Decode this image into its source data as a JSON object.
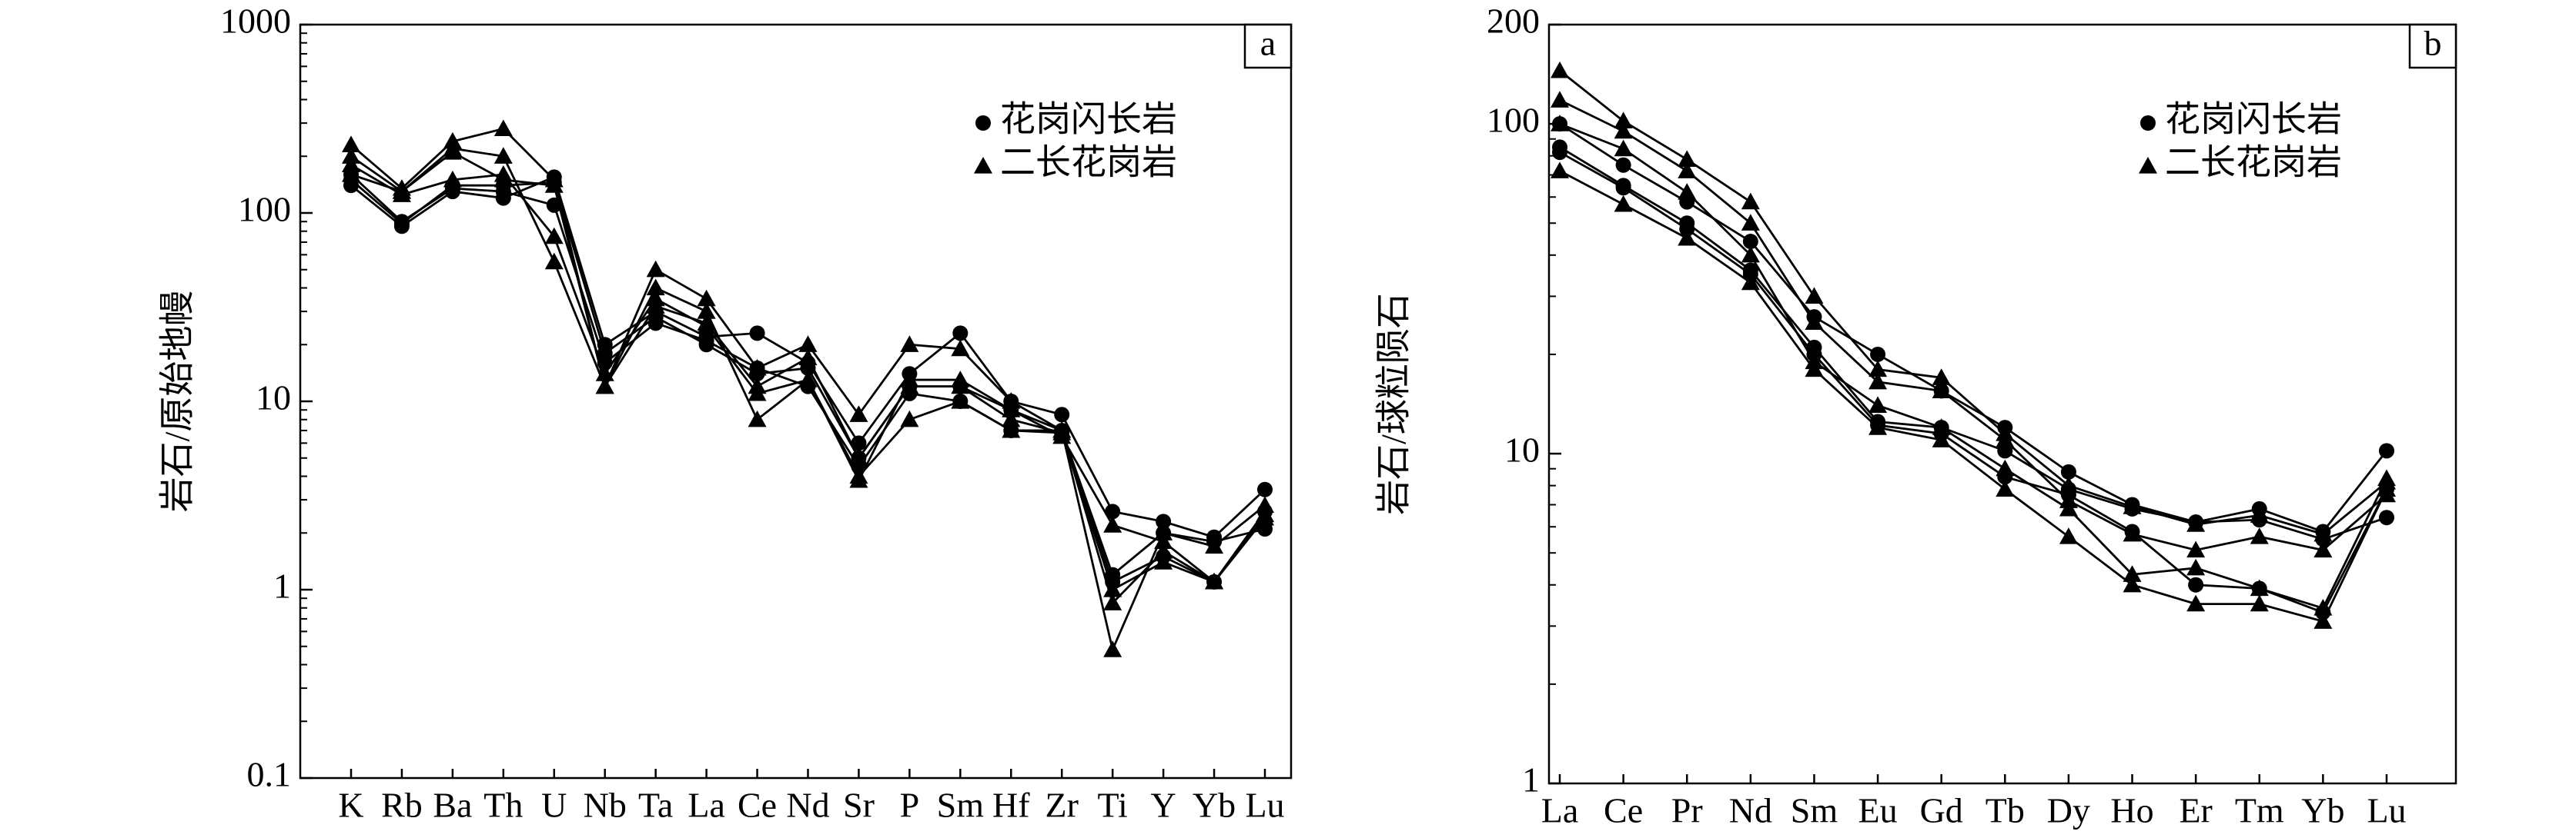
{
  "chart_data": [
    {
      "type": "line",
      "panel": "a",
      "ylabel": "岩石/原始地幔",
      "yscale": "log",
      "ylim": [
        0.1,
        1000
      ],
      "yticks": [
        0.1,
        1,
        10,
        100,
        1000
      ],
      "legend": "upper right",
      "categories": [
        "K",
        "Rb",
        "Ba",
        "Th",
        "U",
        "Nb",
        "Ta",
        "La",
        "Ce",
        "Nd",
        "Sr",
        "P",
        "Sm",
        "Hf",
        "Zr",
        "Ti",
        "Y",
        "Yb",
        "Lu"
      ],
      "series": [
        {
          "name": "花岗闪长岩",
          "marker": "circle",
          "color": "#000000",
          "samples": [
            [
              140,
              85,
              130,
              120,
              155,
              20,
              30,
              22,
              23,
              16,
              6,
              14,
              23,
              10,
              8.5,
              2.6,
              2.3,
              1.9,
              3.4
            ],
            [
              150,
              88,
              140,
              140,
              145,
              18,
              28,
              20,
              14,
              15,
              5,
              12,
              12,
              9,
              7,
              1.2,
              2.0,
              1.8,
              2.1
            ],
            [
              160,
              90,
              135,
              130,
              110,
              16,
              26,
              21,
              15,
              12,
              4.5,
              11,
              10,
              7,
              6.8,
              1.1,
              1.5,
              1.1,
              2.6
            ]
          ]
        },
        {
          "name": "二长花岗岩",
          "marker": "triangle",
          "color": "#000000",
          "samples": [
            [
              230,
              135,
              240,
              280,
              150,
              12,
              50,
              35,
              15,
              20,
              8.5,
              20,
              19,
              10,
              7,
              0.48,
              2.0,
              1.7,
              2.8
            ],
            [
              200,
              130,
              220,
              200,
              55,
              12,
              40,
              30,
              8,
              13,
              4,
              8,
              10,
              7,
              7,
              0.85,
              1.6,
              1.1,
              2.5
            ],
            [
              180,
              125,
              150,
              160,
              75,
              14,
              35,
              25,
              11,
              13,
              3.8,
              13,
              13,
              9,
              6.5,
              2.2,
              1.8,
              1.1,
              2.4
            ],
            [
              160,
              130,
              210,
              150,
              140,
              12,
              32,
              26,
              12,
              17,
              5,
              12,
              12,
              8,
              6.8,
              1.0,
              1.4,
              1.1,
              2.5
            ]
          ]
        }
      ]
    },
    {
      "type": "line",
      "panel": "b",
      "ylabel": "岩石/球粒陨石",
      "yscale": "log",
      "ylim": [
        1,
        200
      ],
      "yticks": [
        1,
        10,
        100,
        200
      ],
      "legend": "upper right",
      "categories": [
        "La",
        "Ce",
        "Pr",
        "Nd",
        "Sm",
        "Eu",
        "Gd",
        "Tb",
        "Dy",
        "Ho",
        "Er",
        "Tm",
        "Yb",
        "Lu"
      ],
      "series": [
        {
          "name": "花岗闪长岩",
          "marker": "circle",
          "color": "#000000",
          "samples": [
            [
              100,
              75,
              58,
              44,
              26,
              20,
              15.5,
              12,
              8.8,
              7.0,
              6.2,
              6.8,
              5.8,
              10.2
            ],
            [
              85,
              65,
              50,
              36,
              21,
              12.5,
              12,
              10.2,
              7.8,
              6.8,
              6.2,
              6.3,
              5.5,
              6.4
            ],
            [
              82,
              64,
              48,
              35,
              20,
              12.2,
              11.5,
              8.5,
              7.5,
              5.8,
              4.0,
              3.9,
              3.3,
              7.8
            ]
          ]
        },
        {
          "name": "二长花岗岩",
          "marker": "triangle",
          "color": "#000000",
          "samples": [
            [
              145,
              102,
              78,
              58,
              30,
              18,
              17,
              11.5,
              8,
              6.9,
              6.1,
              6.5,
              5.7,
              8.2
            ],
            [
              118,
              95,
              72,
              50,
              25,
              16.5,
              15.5,
              11,
              7.2,
              5.7,
              5.1,
              5.6,
              5.1,
              7.5
            ],
            [
              100,
              84,
              62,
              40,
              19,
              14,
              12,
              9,
              6.8,
              4.3,
              4.5,
              3.9,
              3.4,
              8.4
            ],
            [
              72,
              57,
              45,
              33,
              18,
              12,
              11,
              7.8,
              5.6,
              4.0,
              3.5,
              3.5,
              3.1,
              7.8
            ]
          ]
        }
      ]
    }
  ]
}
